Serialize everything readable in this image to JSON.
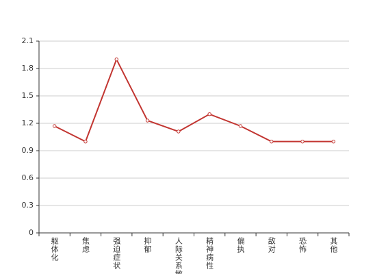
{
  "chart_data": {
    "type": "line",
    "categories": [
      "躯体化",
      "焦虑",
      "强迫症状",
      "抑郁",
      "人际关系敏感",
      "精神病性",
      "偏执",
      "敌对",
      "恐怖",
      "其他"
    ],
    "values": [
      1.17,
      1.0,
      1.9,
      1.23,
      1.11,
      1.3,
      1.17,
      1.0,
      1.0,
      1.0
    ],
    "color": "#c23531",
    "ylim": [
      0,
      2.1
    ],
    "yticks": [
      0,
      0.3,
      0.6,
      0.9,
      1.2,
      1.5,
      1.8,
      2.1
    ],
    "grid": true
  }
}
